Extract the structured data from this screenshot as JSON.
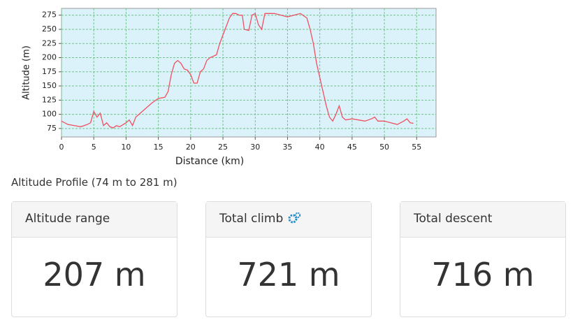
{
  "chart_data": {
    "type": "line",
    "xlabel": "Distance (km)",
    "ylabel": "Altitude (m)",
    "x": [
      0,
      1,
      2,
      3,
      4,
      4.5,
      5,
      5.5,
      6,
      6.5,
      7,
      7.5,
      8,
      8.5,
      9,
      10,
      10.5,
      11,
      11.5,
      12,
      13,
      14,
      15,
      16,
      16.5,
      17,
      17.5,
      18,
      18.5,
      19,
      19.5,
      20,
      20.5,
      21,
      21.5,
      22,
      22.5,
      23,
      24,
      24.5,
      25,
      25.5,
      26,
      26.5,
      27,
      27.5,
      28,
      28.3,
      29,
      29.5,
      30,
      30.5,
      31,
      31.5,
      32,
      33,
      34,
      35,
      36,
      37,
      38,
      38.5,
      39,
      39.5,
      40,
      40.5,
      41,
      41.5,
      42,
      42.5,
      43,
      43.5,
      44,
      45,
      46,
      47,
      48,
      48.5,
      49,
      50,
      51,
      52,
      53,
      53.5,
      54,
      54.5
    ],
    "series": [
      {
        "name": "Altitude",
        "color": "#f0505f",
        "values": [
          88,
          82,
          80,
          78,
          82,
          85,
          105,
          95,
          102,
          80,
          85,
          78,
          76,
          80,
          78,
          85,
          90,
          80,
          95,
          100,
          110,
          120,
          128,
          130,
          140,
          170,
          190,
          195,
          190,
          180,
          178,
          170,
          155,
          155,
          175,
          180,
          195,
          200,
          205,
          225,
          240,
          255,
          270,
          278,
          278,
          275,
          275,
          250,
          248,
          275,
          278,
          258,
          250,
          278,
          278,
          278,
          275,
          272,
          275,
          278,
          270,
          250,
          225,
          190,
          165,
          140,
          115,
          95,
          88,
          100,
          115,
          95,
          90,
          92,
          90,
          88,
          92,
          95,
          88,
          88,
          85,
          82,
          88,
          92,
          85,
          84
        ]
      }
    ],
    "xlim": [
      0,
      58
    ],
    "ylim": [
      60,
      287
    ],
    "xticks": [
      0,
      5,
      10,
      15,
      20,
      25,
      30,
      35,
      40,
      45,
      50,
      55
    ],
    "yticks": [
      75,
      100,
      125,
      150,
      175,
      200,
      225,
      250,
      275
    ],
    "grid": true,
    "background": "#dcf2fb"
  },
  "caption": "Altitude Profile (74 m to 281 m)",
  "cards": [
    {
      "title": "Altitude range",
      "value": "207 m"
    },
    {
      "title": "Total climb",
      "value": "721 m"
    },
    {
      "title": "Total descent",
      "value": "716 m"
    }
  ]
}
